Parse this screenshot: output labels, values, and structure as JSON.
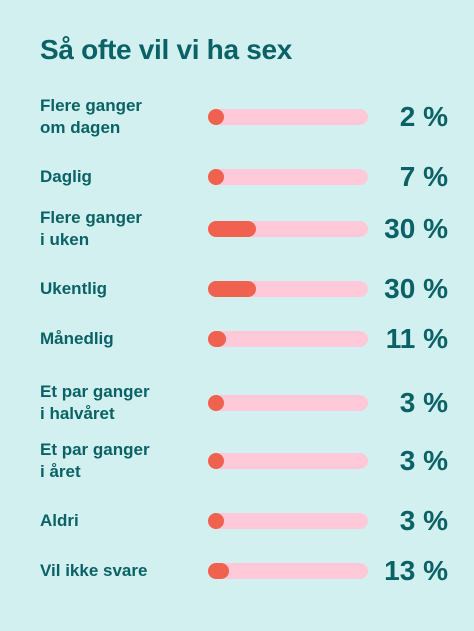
{
  "chart_data": {
    "type": "bar",
    "orientation": "horizontal",
    "title": "Så ofte vil vi ha sex",
    "categories": [
      "Flere ganger\nom dagen",
      "Daglig",
      "Flere ganger\ni uken",
      "Ukentlig",
      "Månedlig",
      "Et par ganger\ni halvåret",
      "Et par ganger\ni året",
      "Aldri",
      "Vil ikke svare"
    ],
    "values": [
      2,
      7,
      30,
      30,
      11,
      3,
      3,
      3,
      13
    ],
    "value_labels": [
      "2 %",
      "7 %",
      "30 %",
      "30 %",
      "11 %",
      "3 %",
      "3 %",
      "3 %",
      "13 %"
    ],
    "xlim": [
      0,
      100
    ],
    "color": "#f0614f",
    "track_color": "#ffc9d9"
  }
}
